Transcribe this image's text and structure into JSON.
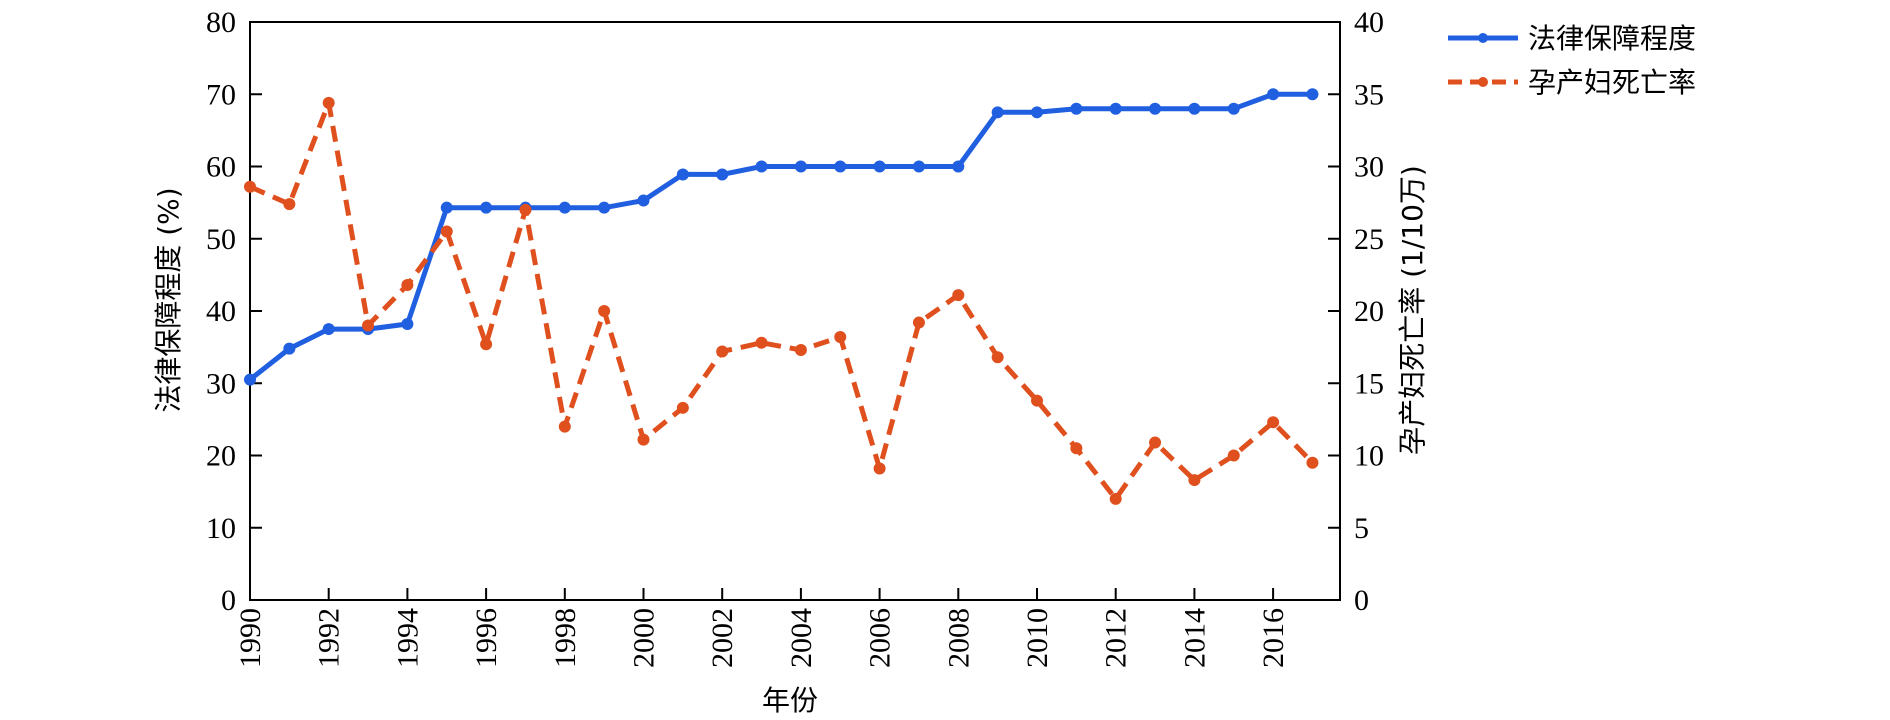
{
  "chart_data": {
    "type": "line",
    "x": [
      1990,
      1991,
      1992,
      1993,
      1994,
      1995,
      1996,
      1997,
      1998,
      1999,
      2000,
      2001,
      2002,
      2003,
      2004,
      2005,
      2006,
      2007,
      2008,
      2009,
      2010,
      2011,
      2012,
      2013,
      2014,
      2015,
      2016,
      2017
    ],
    "series": [
      {
        "name": "法律保障程度",
        "axis": "left",
        "color": "#1f5fe0",
        "style": "solid",
        "values": [
          30.5,
          34.8,
          37.5,
          37.5,
          38.2,
          54.3,
          54.3,
          54.3,
          54.3,
          54.3,
          55.3,
          58.9,
          58.9,
          60.0,
          60.0,
          60.0,
          60.0,
          60.0,
          60.0,
          67.5,
          67.5,
          68.0,
          68.0,
          68.0,
          68.0,
          68.0,
          70.0,
          70.0
        ]
      },
      {
        "name": "孕产妇死亡率",
        "axis": "right",
        "color": "#e0501e",
        "style": "dashed",
        "values": [
          28.6,
          27.4,
          34.4,
          19.0,
          21.8,
          25.5,
          17.7,
          27.0,
          12.0,
          20.0,
          11.1,
          13.3,
          17.2,
          17.8,
          17.3,
          18.2,
          9.1,
          19.2,
          21.1,
          16.8,
          13.8,
          10.5,
          7.0,
          10.9,
          8.3,
          10.0,
          12.3,
          9.5
        ]
      }
    ],
    "xlabel": "年份",
    "ylabel": "法律保障程度 (%)",
    "y2label": "孕产妇死亡率 (1/10万)",
    "xlim": [
      1990,
      2017.7
    ],
    "ylim": [
      0,
      80
    ],
    "y2lim": [
      0,
      40
    ],
    "yticks": [
      0,
      10,
      20,
      30,
      40,
      50,
      60,
      70,
      80
    ],
    "y2ticks": [
      0,
      5,
      10,
      15,
      20,
      25,
      30,
      35,
      40
    ],
    "xticks": [
      1990,
      1992,
      1994,
      1996,
      1998,
      2000,
      2002,
      2004,
      2006,
      2008,
      2010,
      2012,
      2014,
      2016
    ],
    "legend": "top-right, outside plot",
    "grid": false
  }
}
